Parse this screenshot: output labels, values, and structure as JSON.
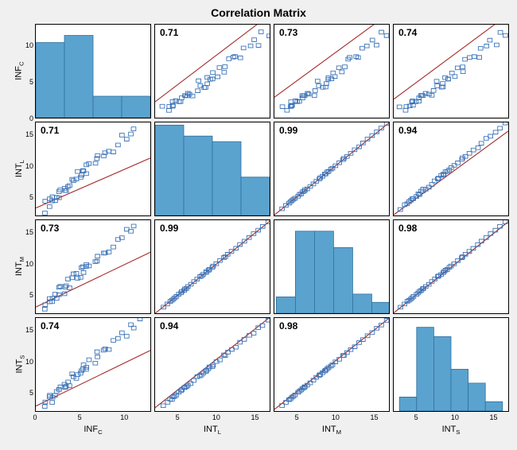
{
  "title": "Correlation  Matrix",
  "variables": [
    "INF_C",
    "INT_L",
    "INT_M",
    "INT_S"
  ],
  "var_labels_html": [
    "INF<sub>C</sub>",
    "INT<sub>L</sub>",
    "INT<sub>M</sub>",
    "INT<sub>S</sub>"
  ],
  "colors": {
    "background": "#f0f0f0",
    "panel_bg": "#ffffff",
    "panel_border": "#000000",
    "bar_fill": "#5ba3cf",
    "bar_stroke": "#2f6f9e",
    "marker_stroke": "#3b73b8",
    "line_color": "#a52a2a",
    "tick_color": "#000000",
    "text_color": "#000000"
  },
  "marker": {
    "size": 4,
    "shape": "square",
    "fill": "none",
    "stroke_width": 0.9
  },
  "line": {
    "width": 1.1
  },
  "bar": {
    "stroke_width": 0.8
  },
  "title_fontsize": 14,
  "label_fontsize": 11,
  "corr_fontsize": 12,
  "tick_fontsize": 9,
  "corr": [
    [
      null,
      0.71,
      0.73,
      0.74
    ],
    [
      0.71,
      null,
      0.99,
      0.94
    ],
    [
      0.73,
      0.99,
      null,
      0.98
    ],
    [
      0.74,
      0.94,
      0.98,
      null
    ]
  ],
  "ranges": [
    {
      "min": 0,
      "max": 13,
      "ticks": [
        0,
        5,
        10
      ]
    },
    {
      "min": 2,
      "max": 17,
      "ticks": [
        5,
        10,
        15
      ]
    },
    {
      "min": 2,
      "max": 17,
      "ticks": [
        5,
        10,
        15
      ]
    },
    {
      "min": 2,
      "max": 17,
      "ticks": [
        5,
        10,
        15
      ]
    }
  ],
  "hist": [
    {
      "centers": [
        1.625,
        4.875,
        8.125,
        11.375
      ],
      "width": 3.25,
      "counts": [
        10.5,
        11.5,
        3,
        3
      ],
      "ymax": 13
    },
    {
      "centers": [
        3.875,
        7.625,
        11.375,
        15.125
      ],
      "width": 3.75,
      "counts": [
        16.5,
        14.5,
        13.5,
        7
      ],
      "ymax": 17
    },
    {
      "centers": [
        3.5,
        6.0,
        8.5,
        11.0,
        13.5,
        16.0
      ],
      "width": 2.5,
      "counts": [
        3,
        15,
        15,
        12,
        3.5,
        2
      ],
      "ymax": 17
    },
    {
      "centers": [
        3.875,
        6.125,
        8.375,
        10.625,
        12.875,
        15.125
      ],
      "width": 2.25,
      "counts": [
        3,
        18,
        16,
        9,
        6,
        2
      ],
      "ymax": 20
    }
  ],
  "fits": {
    "0_1": {
      "slope": 0.81,
      "intercept": 0.6
    },
    "0_2": {
      "slope": 0.78,
      "intercept": 1.3
    },
    "0_3": {
      "slope": 0.79,
      "intercept": 1.0
    },
    "1_0": {
      "slope": 0.62,
      "intercept": 3.2
    },
    "1_2": {
      "slope": 0.99,
      "intercept": 0.1
    },
    "1_3": {
      "slope": 0.9,
      "intercept": 0.3
    },
    "2_0": {
      "slope": 0.68,
      "intercept": 3.0
    },
    "2_1": {
      "slope": 0.99,
      "intercept": 0.0
    },
    "2_3": {
      "slope": 0.98,
      "intercept": 0.1
    },
    "3_0": {
      "slope": 0.69,
      "intercept": 2.8
    },
    "3_1": {
      "slope": 0.97,
      "intercept": 0.6
    },
    "3_2": {
      "slope": 0.98,
      "intercept": 0.3
    }
  },
  "samples": {
    "INF_C": [
      0.8,
      1.2,
      1.5,
      1.7,
      2.0,
      2.3,
      2.6,
      3.0,
      3.3,
      3.5,
      3.9,
      4.1,
      4.5,
      4.8,
      5.1,
      5.5,
      5.8,
      6.2,
      6.6,
      7.1,
      7.5,
      8.0,
      8.4,
      8.9,
      9.3,
      9.8,
      10.3,
      10.8,
      11.3,
      12.0,
      4.2,
      2.1,
      5.6,
      3.7,
      6.9,
      1.9,
      4.9,
      2.7,
      5.3,
      3.1
    ],
    "INT_L": [
      3.1,
      3.6,
      4.0,
      4.4,
      4.8,
      5.1,
      5.5,
      5.9,
      6.3,
      6.7,
      7.1,
      7.5,
      7.9,
      8.3,
      8.7,
      9.1,
      9.6,
      10.0,
      10.5,
      11.0,
      11.5,
      12.0,
      12.6,
      13.1,
      13.7,
      14.3,
      14.9,
      15.5,
      16.1,
      16.8,
      8.1,
      4.6,
      9.5,
      6.1,
      11.2,
      4.2,
      8.7,
      5.4,
      9.0,
      5.8
    ],
    "INT_M": [
      3.0,
      3.5,
      3.9,
      4.3,
      4.7,
      5.1,
      5.5,
      5.9,
      6.3,
      6.7,
      7.1,
      7.5,
      7.9,
      8.3,
      8.7,
      9.1,
      9.6,
      10.0,
      10.5,
      11.0,
      11.5,
      12.0,
      12.5,
      13.1,
      13.6,
      14.2,
      14.8,
      15.4,
      16.0,
      16.7,
      8.0,
      4.5,
      9.4,
      6.0,
      11.1,
      4.1,
      8.6,
      5.3,
      8.9,
      5.7
    ],
    "INT_S": [
      2.9,
      3.4,
      3.8,
      4.2,
      4.6,
      5.0,
      5.4,
      5.8,
      6.2,
      6.6,
      7.0,
      7.4,
      7.8,
      8.2,
      8.6,
      9.0,
      9.5,
      9.9,
      10.4,
      10.9,
      11.4,
      11.9,
      12.4,
      13.0,
      13.5,
      14.1,
      14.7,
      15.3,
      15.9,
      16.6,
      7.9,
      4.4,
      9.3,
      5.9,
      11.0,
      4.0,
      8.5,
      5.2,
      8.8,
      5.6
    ]
  },
  "jitter": [
    0.65,
    -0.28,
    0.12,
    -0.53,
    0.31,
    -0.11,
    0.48,
    -0.37,
    0.09,
    -0.62,
    0.23,
    -0.15,
    0.54,
    -0.44,
    0.18,
    -0.07,
    0.41,
    -0.58,
    0.27,
    -0.19,
    0.6,
    -0.33,
    0.05,
    -0.49,
    0.36,
    -0.24,
    0.14,
    -0.4,
    0.57,
    -0.02,
    -0.71,
    0.38,
    -0.16,
    0.46,
    -0.3,
    0.2,
    -0.55,
    0.08,
    0.33,
    -0.47
  ]
}
